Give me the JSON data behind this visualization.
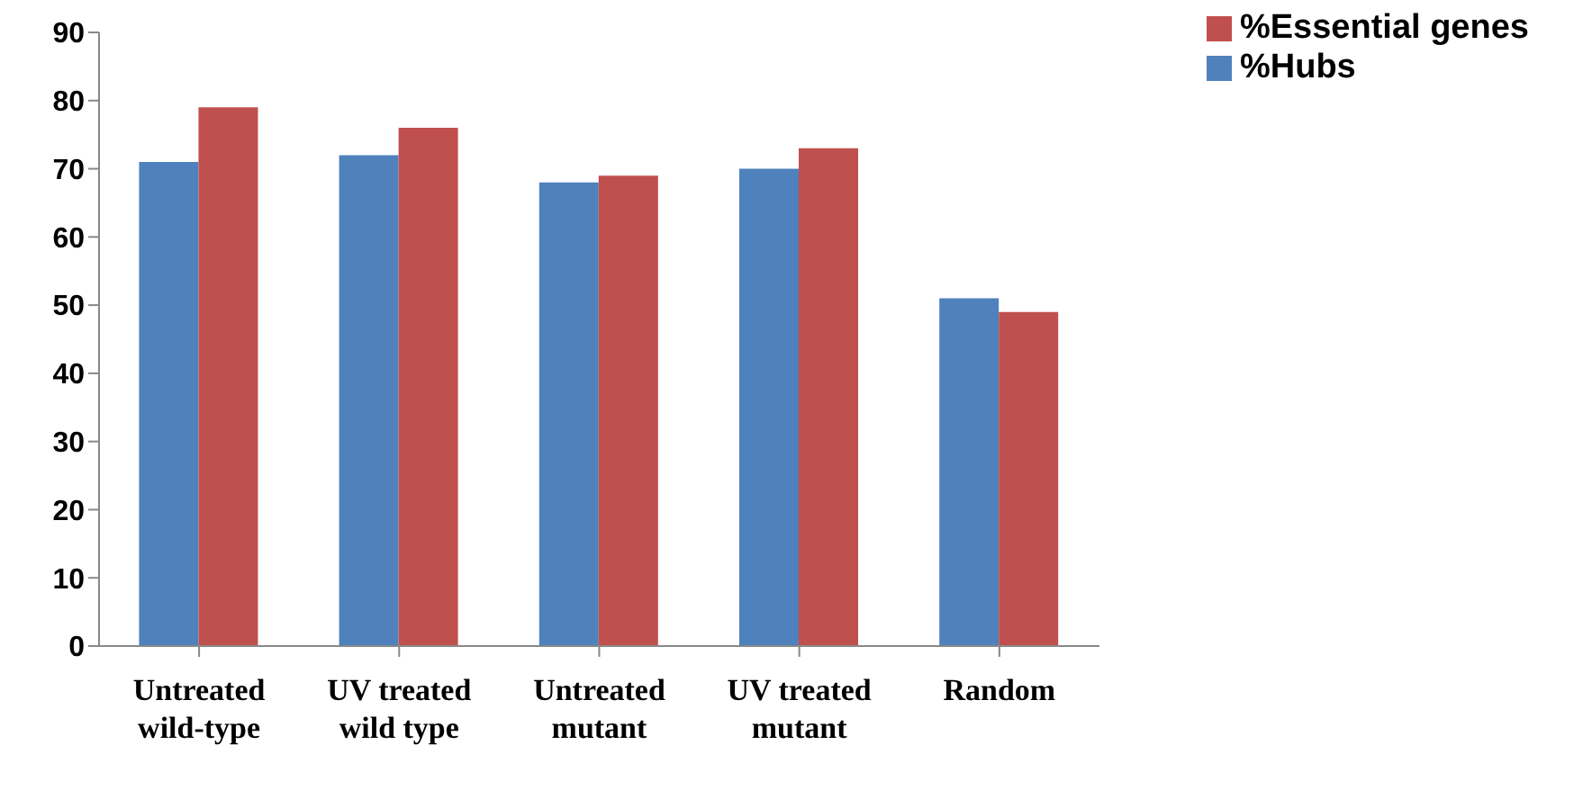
{
  "chart_data": {
    "type": "bar",
    "categories": [
      "Untreated\nwild-type",
      "UV treated\nwild type",
      "Untreated\nmutant",
      "UV treated\nmutant",
      "Random"
    ],
    "series": [
      {
        "name": "%Hubs",
        "color": "#4f81bd",
        "values": [
          71,
          72,
          68,
          70,
          51
        ]
      },
      {
        "name": "%Essential genes",
        "color": "#c0504d",
        "values": [
          79,
          76,
          69,
          73,
          49
        ]
      }
    ],
    "ylim": [
      0,
      90
    ],
    "yticks": [
      0,
      10,
      20,
      30,
      40,
      50,
      60,
      70,
      80,
      90
    ],
    "grid": false,
    "legend": "top right"
  }
}
